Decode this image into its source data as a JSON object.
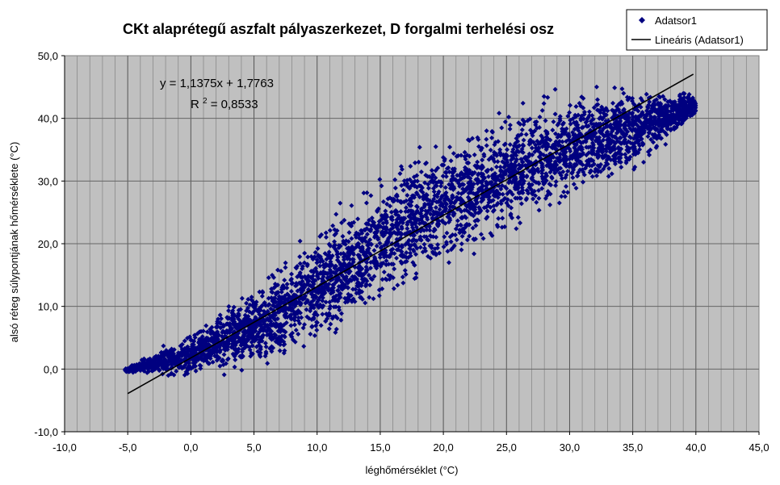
{
  "chart_data": {
    "type": "scatter",
    "title": "CKt alaprétegű aszfalt pályaszerkezet, D forgalmi terhelési osz",
    "xlabel": "léghőmérséklet (°C)",
    "ylabel": "alsó réteg súlypontjának hőmérséklete (°C)",
    "xlim": [
      -10,
      45
    ],
    "ylim": [
      -10,
      50
    ],
    "x_ticks": [
      "-10,0",
      "-5,0",
      "0,0",
      "5,0",
      "10,0",
      "15,0",
      "20,0",
      "25,0",
      "30,0",
      "35,0",
      "40,0",
      "45,0"
    ],
    "y_ticks": [
      "-10,0",
      "0,0",
      "10,0",
      "20,0",
      "30,0",
      "40,0",
      "50,0"
    ],
    "grid": "vertical-major-and-minor, horizontal-major",
    "background_color": "#c0c0c0",
    "marker_color": "#000080",
    "trend_color": "#000000",
    "series": [
      {
        "name": "Adatsor1",
        "style": "diamond-markers",
        "x_range": [
          -5.2,
          40
        ],
        "y_range": [
          -1.5,
          47
        ],
        "cloud": [
          {
            "x": -5,
            "y_low": -0.5,
            "y_high": 0.3
          },
          {
            "x": -3,
            "y_low": -1,
            "y_high": 2.5
          },
          {
            "x": 0,
            "y_low": -1.5,
            "y_high": 6
          },
          {
            "x": 5,
            "y_low": 0,
            "y_high": 13
          },
          {
            "x": 10,
            "y_low": 4,
            "y_high": 22
          },
          {
            "x": 15,
            "y_low": 10,
            "y_high": 31
          },
          {
            "x": 20,
            "y_low": 16,
            "y_high": 37
          },
          {
            "x": 25,
            "y_low": 21,
            "y_high": 41
          },
          {
            "x": 30,
            "y_low": 27,
            "y_high": 44
          },
          {
            "x": 35,
            "y_low": 31,
            "y_high": 46
          },
          {
            "x": 40,
            "y_low": 40,
            "y_high": 44
          }
        ]
      },
      {
        "name": "Lineáris (Adatsor1)",
        "style": "line",
        "slope": 1.1375,
        "intercept": 1.7763,
        "x_start": -5,
        "x_end": 39.8
      }
    ],
    "legend": {
      "position": "top-right",
      "entries": [
        "Adatsor1",
        "Lineáris (Adatsor1)"
      ]
    },
    "annotations": {
      "equation": "y = 1,1375x + 1,7763",
      "r2_prefix": "R",
      "r2_exponent": "2",
      "r2_value": " = 0,8533"
    }
  }
}
